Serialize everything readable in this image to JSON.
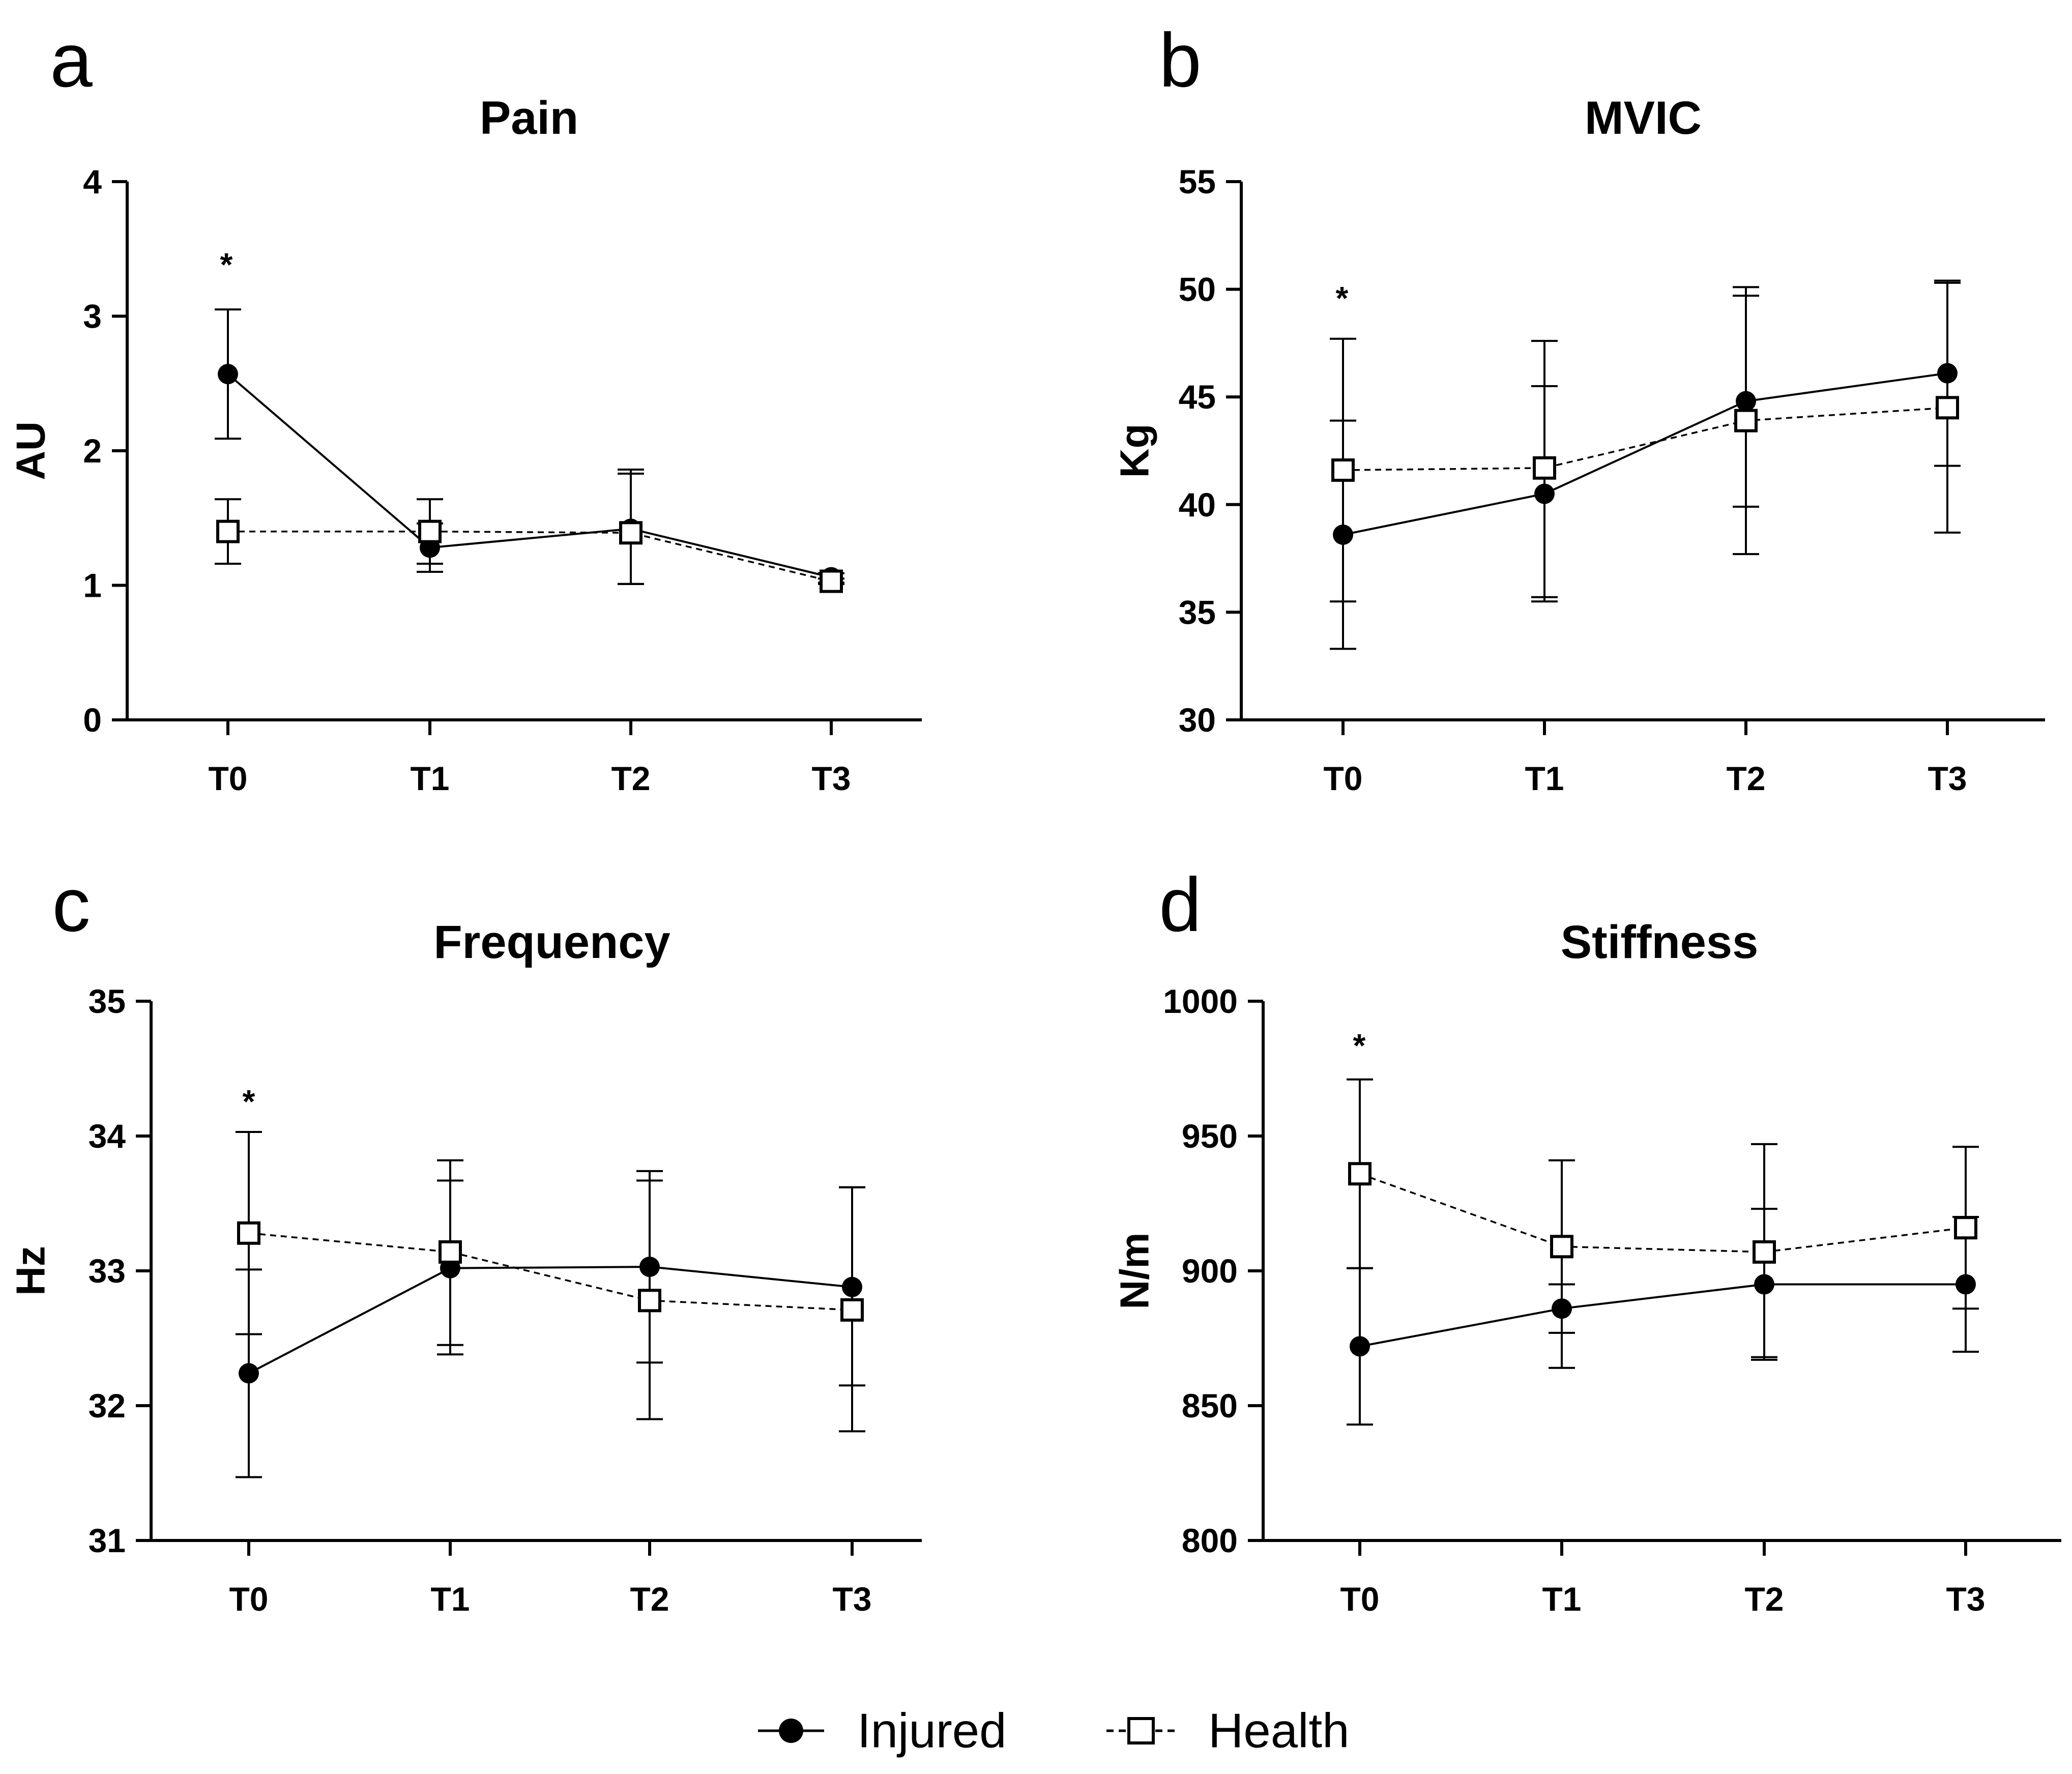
{
  "legend": [
    {
      "name": "Injured",
      "marker": "filled-circle",
      "line": "solid"
    },
    {
      "name": "Health",
      "marker": "open-square",
      "line": "dashed"
    }
  ],
  "chart_data": [
    {
      "panel": "a",
      "type": "line",
      "title": "Pain",
      "xlabel": "",
      "ylabel": "AU",
      "categories": [
        "T0",
        "T1",
        "T2",
        "T3"
      ],
      "ylim": [
        0,
        4
      ],
      "yticks": [
        "0",
        "1",
        "2",
        "3",
        "4"
      ],
      "significance": [
        {
          "category": "T0",
          "label": "*"
        }
      ],
      "series": [
        {
          "name": "Injured",
          "values": [
            2.57,
            1.28,
            1.42,
            1.06
          ],
          "err_low": [
            2.09,
            1.1,
            1.01,
            1.02
          ],
          "err_high": [
            3.05,
            1.46,
            1.83,
            1.09
          ]
        },
        {
          "name": "Health",
          "values": [
            1.4,
            1.4,
            1.39,
            1.03
          ],
          "err_low": [
            1.16,
            1.16,
            1.01,
            1.01
          ],
          "err_high": [
            1.64,
            1.64,
            1.86,
            1.05
          ]
        }
      ]
    },
    {
      "panel": "b",
      "type": "line",
      "title": "MVIC",
      "xlabel": "",
      "ylabel": "Kg",
      "categories": [
        "T0",
        "T1",
        "T2",
        "T3"
      ],
      "ylim": [
        30,
        55
      ],
      "yticks": [
        "30",
        "35",
        "40",
        "45",
        "50",
        "55"
      ],
      "significance": [
        {
          "category": "T0",
          "label": "*"
        }
      ],
      "series": [
        {
          "name": "Injured",
          "values": [
            38.6,
            40.5,
            44.8,
            46.1
          ],
          "err_low": [
            33.3,
            35.5,
            39.9,
            41.8
          ],
          "err_high": [
            43.9,
            45.5,
            49.7,
            50.4
          ]
        },
        {
          "name": "Health",
          "values": [
            41.6,
            41.7,
            43.9,
            44.5
          ],
          "err_low": [
            35.5,
            35.7,
            37.7,
            38.7
          ],
          "err_high": [
            47.7,
            47.6,
            50.1,
            50.3
          ]
        }
      ]
    },
    {
      "panel": "c",
      "type": "line",
      "title": "Frequency",
      "xlabel": "",
      "ylabel": "Hz",
      "categories": [
        "T0",
        "T1",
        "T2",
        "T3"
      ],
      "ylim": [
        31,
        35
      ],
      "yticks": [
        "31",
        "32",
        "33",
        "34",
        "35"
      ],
      "significance": [
        {
          "category": "T0",
          "label": "*"
        }
      ],
      "series": [
        {
          "name": "Injured",
          "values": [
            32.24,
            33.02,
            33.03,
            32.88
          ],
          "err_low": [
            31.47,
            32.38,
            32.32,
            32.15
          ],
          "err_high": [
            33.01,
            33.67,
            33.74,
            33.62
          ]
        },
        {
          "name": "Health",
          "values": [
            33.28,
            33.14,
            32.78,
            32.71
          ],
          "err_low": [
            32.53,
            32.45,
            31.9,
            31.81
          ],
          "err_high": [
            34.03,
            33.82,
            33.67,
            33.62
          ]
        }
      ]
    },
    {
      "panel": "d",
      "type": "line",
      "title": "Stiffness",
      "xlabel": "",
      "ylabel": "N/m",
      "categories": [
        "T0",
        "T1",
        "T2",
        "T3"
      ],
      "ylim": [
        800,
        1000
      ],
      "yticks": [
        "800",
        "850",
        "900",
        "950",
        "1000"
      ],
      "significance": [
        {
          "category": "T0",
          "label": "*"
        }
      ],
      "series": [
        {
          "name": "Injured",
          "values": [
            872,
            886,
            895,
            895
          ],
          "err_low": [
            843,
            877,
            867,
            870
          ],
          "err_high": [
            901,
            895,
            923,
            920
          ]
        },
        {
          "name": "Health",
          "values": [
            936,
            909,
            907,
            916
          ],
          "err_low": [
            901,
            864,
            868,
            886
          ],
          "err_high": [
            971,
            941,
            947,
            946
          ]
        }
      ]
    }
  ]
}
